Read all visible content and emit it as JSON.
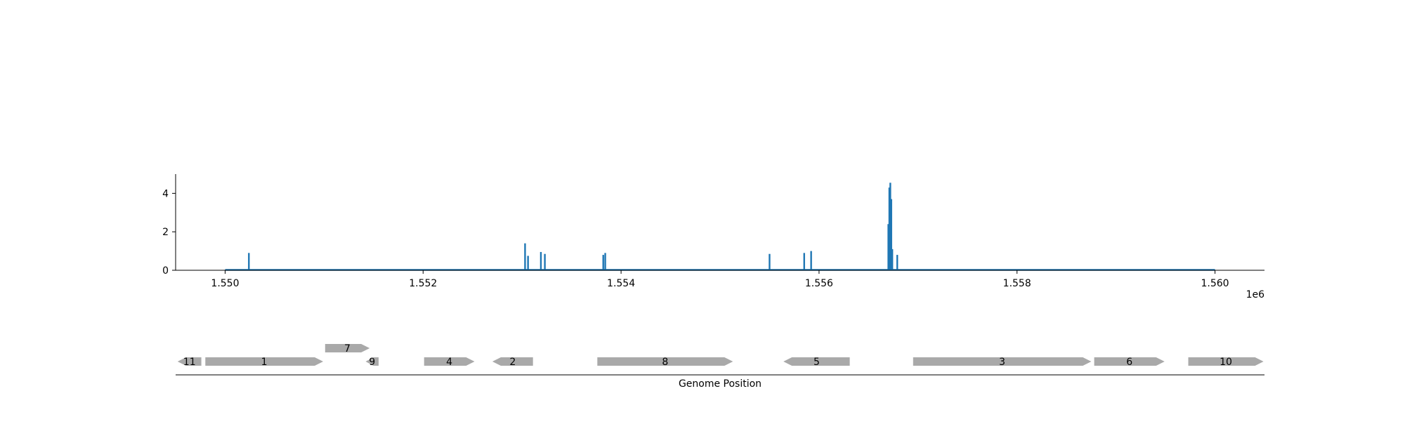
{
  "chart_data": [
    {
      "type": "bar",
      "title": "",
      "xlabel": "",
      "ylabel": "",
      "x_offset_label": "1e6",
      "xlim": [
        1549500,
        1560500
      ],
      "ylim": [
        0,
        5
      ],
      "xticks": [
        1550000,
        1552000,
        1554000,
        1556000,
        1558000,
        1560000
      ],
      "xtick_labels": [
        "1.550",
        "1.552",
        "1.554",
        "1.556",
        "1.558",
        "1.560"
      ],
      "yticks": [
        0,
        2,
        4
      ],
      "ytick_labels": [
        "0",
        "2",
        "4"
      ],
      "baseline_range": [
        1550000,
        1560000
      ],
      "color": "#1f77b4",
      "x": [
        1550240,
        1553030,
        1553060,
        1553190,
        1553230,
        1553820,
        1553840,
        1555500,
        1555850,
        1555920,
        1556700,
        1556710,
        1556720,
        1556730,
        1556740,
        1556790
      ],
      "values": [
        0.9,
        1.4,
        0.75,
        0.95,
        0.85,
        0.8,
        0.9,
        0.85,
        0.9,
        1.0,
        2.4,
        4.3,
        4.55,
        3.7,
        1.1,
        0.8
      ],
      "grid": false,
      "legend": "none"
    },
    {
      "type": "gene-map",
      "xlabel": "Genome Position",
      "color": "#a9a9a9",
      "genes": [
        {
          "label": "11",
          "start": 1549520,
          "end": 1549760,
          "strand": "-",
          "row": 0
        },
        {
          "label": "1",
          "start": 1549800,
          "end": 1550990,
          "strand": "+",
          "row": 0
        },
        {
          "label": "7",
          "start": 1551010,
          "end": 1551460,
          "strand": "+",
          "row": 1
        },
        {
          "label": "9",
          "start": 1551420,
          "end": 1551550,
          "strand": "-",
          "row": 0
        },
        {
          "label": "4",
          "start": 1552010,
          "end": 1552520,
          "strand": "+",
          "row": 0
        },
        {
          "label": "2",
          "start": 1552700,
          "end": 1553110,
          "strand": "-",
          "row": 0
        },
        {
          "label": "8",
          "start": 1553760,
          "end": 1555130,
          "strand": "+",
          "row": 0
        },
        {
          "label": "5",
          "start": 1555640,
          "end": 1556310,
          "strand": "-",
          "row": 0
        },
        {
          "label": "3",
          "start": 1556950,
          "end": 1558750,
          "strand": "+",
          "row": 0
        },
        {
          "label": "6",
          "start": 1558780,
          "end": 1559490,
          "strand": "+",
          "row": 0
        },
        {
          "label": "10",
          "start": 1559730,
          "end": 1560490,
          "strand": "+",
          "row": 0
        }
      ]
    }
  ]
}
